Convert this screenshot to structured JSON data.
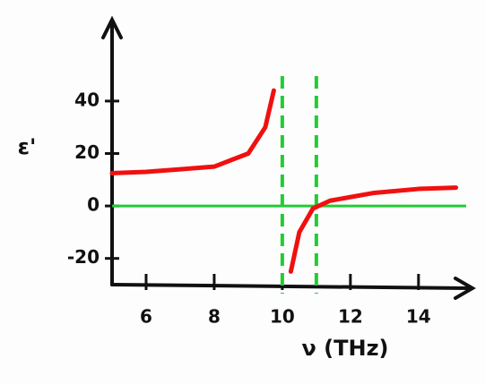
{
  "chart_data": {
    "type": "line",
    "x_label": "ν (THz)",
    "y_label": "ε'",
    "x": [
      5,
      6,
      7,
      8,
      9,
      9.5,
      9.75,
      10,
      10.25,
      10.5,
      10.9,
      11.4,
      12.7,
      14,
      15.1
    ],
    "series": [
      {
        "color": "#f01010",
        "values": [
          12.5,
          13,
          14,
          15,
          20,
          30,
          44,
          null,
          -25,
          -10,
          -1,
          2,
          5,
          6.5,
          7
        ]
      }
    ],
    "xlim": [
      5,
      15.4
    ],
    "ylim": [
      -30,
      70
    ],
    "xticks": [
      6,
      8,
      10,
      12,
      14
    ],
    "yticks": [
      40,
      20,
      0,
      -20
    ],
    "hline": 0,
    "vlines": [
      10,
      11
    ],
    "reference_color": "#22cc33"
  }
}
